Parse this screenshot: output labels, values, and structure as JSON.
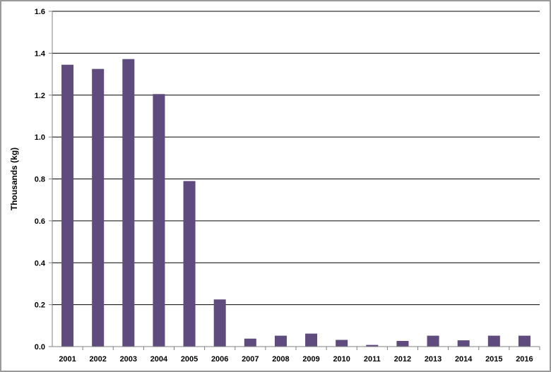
{
  "chart_data": {
    "type": "bar",
    "title": "",
    "xlabel": "",
    "ylabel": "Thousands (kg)",
    "ylim": [
      0,
      1.6
    ],
    "ytick_labels": [
      "0.0",
      "0.2",
      "0.4",
      "0.6",
      "0.8",
      "1.0",
      "1.2",
      "1.4",
      "1.6"
    ],
    "categories": [
      "2001",
      "2002",
      "2003",
      "2004",
      "2005",
      "2006",
      "2007",
      "2008",
      "2009",
      "2010",
      "2011",
      "2012",
      "2013",
      "2014",
      "2015",
      "2016"
    ],
    "values": [
      1.345,
      1.325,
      1.372,
      1.205,
      0.79,
      0.225,
      0.038,
      0.052,
      0.062,
      0.032,
      0.008,
      0.027,
      0.052,
      0.03,
      0.052,
      0.052
    ],
    "grid": true,
    "legend": "none",
    "bar_color": "#5f4b7d",
    "grid_color": "#000000"
  }
}
